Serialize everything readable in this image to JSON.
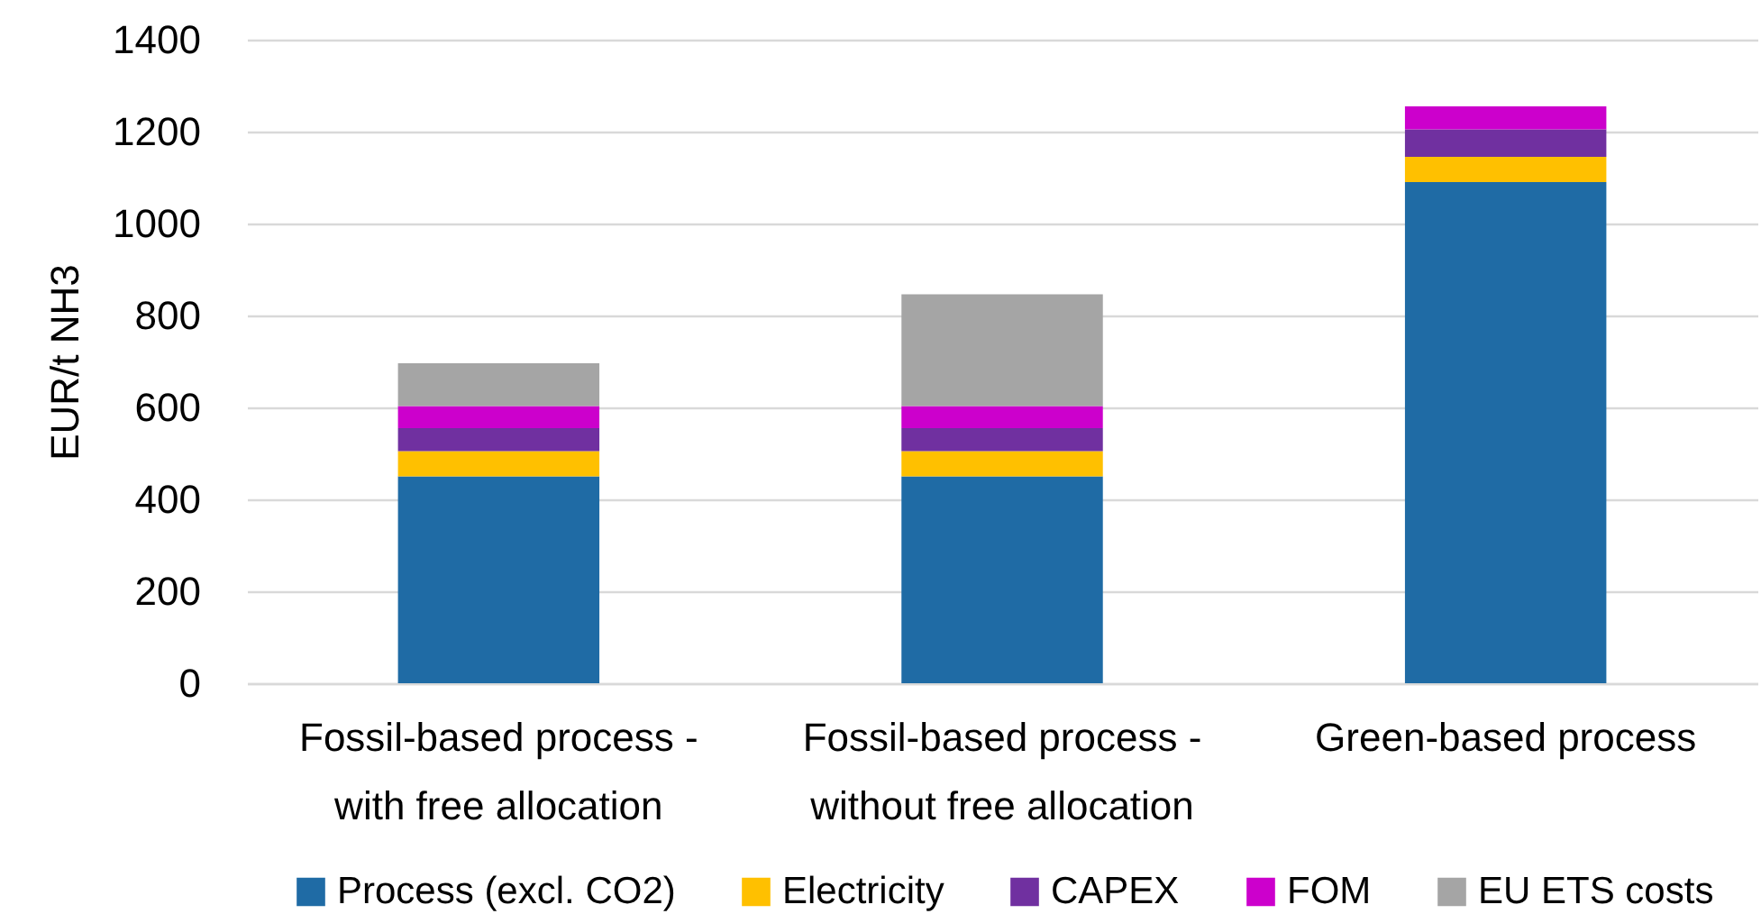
{
  "chart_data": {
    "type": "bar",
    "stacked": true,
    "ylabel": "EUR/t NH3",
    "categories": [
      "Fossil-based process - with free allocation",
      "Fossil-based process - without free allocation",
      "Green-based process"
    ],
    "series": [
      {
        "name": "Process (excl. CO2)",
        "color": "#1f6ba5",
        "values": [
          450,
          450,
          1090
        ]
      },
      {
        "name": "Electricity",
        "color": "#ffc000",
        "values": [
          55,
          55,
          55
        ]
      },
      {
        "name": "CAPEX",
        "color": "#7030a0",
        "values": [
          50,
          50,
          60
        ]
      },
      {
        "name": "FOM",
        "color": "#cc00cc",
        "values": [
          48,
          48,
          50
        ]
      },
      {
        "name": "EU ETS costs",
        "color": "#a5a5a5",
        "values": [
          93,
          243,
          null
        ]
      }
    ],
    "ylim": [
      0,
      1400
    ],
    "yticks": [
      0,
      200,
      400,
      600,
      800,
      1000,
      1200,
      1400
    ],
    "grid": "y",
    "legend": "bottom"
  }
}
